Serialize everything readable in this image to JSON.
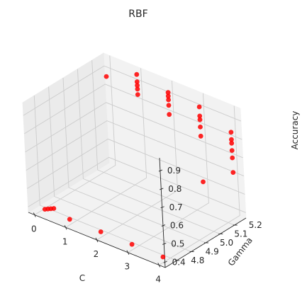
{
  "chart_data": {
    "type": "scatter",
    "projection": "3d",
    "title": "RBF",
    "xlabel": "C",
    "ylabel": "Gamma",
    "zlabel": "Accuracy",
    "xlim": [
      -0.2,
      4.2
    ],
    "ylim": [
      4.72,
      5.28
    ],
    "zlim": [
      0.37,
      0.97
    ],
    "xticks": [
      0,
      1,
      2,
      3,
      4
    ],
    "yticks": [
      4.8,
      4.9,
      5.0,
      5.1,
      5.2
    ],
    "zticks": [
      0.4,
      0.5,
      0.6,
      0.7,
      0.8,
      0.9
    ],
    "xtick_labels": [
      "0",
      "1",
      "2",
      "3",
      "4"
    ],
    "ytick_labels": [
      "4.8",
      "4.9",
      "5.0",
      "5.1",
      "5.2"
    ],
    "ztick_labels": [
      "0.4",
      "0.5",
      "0.6",
      "0.7",
      "0.8",
      "0.9"
    ],
    "grid": true,
    "marker_color": "#ff0000",
    "points": [
      {
        "x": 0.0,
        "y": 5.25,
        "z": 0.87
      },
      {
        "x": 0.2,
        "y": 4.75,
        "z": 0.4
      },
      {
        "x": 0.25,
        "y": 4.76,
        "z": 0.4
      },
      {
        "x": 0.3,
        "y": 4.77,
        "z": 0.4
      },
      {
        "x": 0.35,
        "y": 4.78,
        "z": 0.4
      },
      {
        "x": 1.0,
        "y": 5.25,
        "z": 0.95
      },
      {
        "x": 1.0,
        "y": 5.25,
        "z": 0.91
      },
      {
        "x": 1.0,
        "y": 5.25,
        "z": 0.89
      },
      {
        "x": 1.0,
        "y": 5.25,
        "z": 0.87
      },
      {
        "x": 1.0,
        "y": 5.25,
        "z": 0.84
      },
      {
        "x": 1.0,
        "y": 4.75,
        "z": 0.4
      },
      {
        "x": 2.0,
        "y": 5.25,
        "z": 0.92
      },
      {
        "x": 2.0,
        "y": 5.25,
        "z": 0.9
      },
      {
        "x": 2.0,
        "y": 5.25,
        "z": 0.88
      },
      {
        "x": 2.0,
        "y": 5.25,
        "z": 0.85
      },
      {
        "x": 2.0,
        "y": 5.25,
        "z": 0.8
      },
      {
        "x": 2.0,
        "y": 4.75,
        "z": 0.4
      },
      {
        "x": 3.0,
        "y": 5.25,
        "z": 0.91
      },
      {
        "x": 3.0,
        "y": 5.25,
        "z": 0.86
      },
      {
        "x": 3.0,
        "y": 5.25,
        "z": 0.84
      },
      {
        "x": 3.0,
        "y": 5.25,
        "z": 0.8
      },
      {
        "x": 3.0,
        "y": 5.25,
        "z": 0.75
      },
      {
        "x": 3.0,
        "y": 5.25,
        "z": 0.5
      },
      {
        "x": 3.0,
        "y": 4.75,
        "z": 0.4
      },
      {
        "x": 4.0,
        "y": 5.25,
        "z": 0.84
      },
      {
        "x": 4.0,
        "y": 5.25,
        "z": 0.8
      },
      {
        "x": 4.0,
        "y": 5.25,
        "z": 0.78
      },
      {
        "x": 4.0,
        "y": 5.25,
        "z": 0.74
      },
      {
        "x": 4.0,
        "y": 5.25,
        "z": 0.7
      },
      {
        "x": 4.0,
        "y": 5.25,
        "z": 0.62
      },
      {
        "x": 4.0,
        "y": 4.75,
        "z": 0.4
      }
    ]
  }
}
